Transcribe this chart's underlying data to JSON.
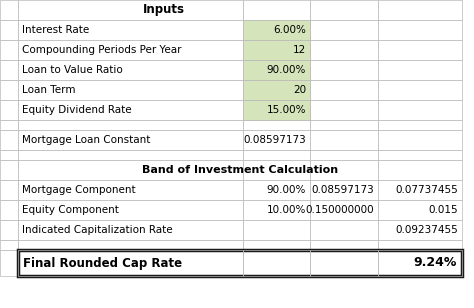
{
  "title_inputs": "Inputs",
  "title_band": "Band of Investment Calculation",
  "inputs": [
    {
      "label": "Interest Rate",
      "value": "6.00%",
      "highlighted": true
    },
    {
      "label": "Compounding Periods Per Year",
      "value": "12",
      "highlighted": true
    },
    {
      "label": "Loan to Value Ratio",
      "value": "90.00%",
      "highlighted": true
    },
    {
      "label": "Loan Term",
      "value": "20",
      "highlighted": true
    },
    {
      "label": "Equity Dividend Rate",
      "value": "15.00%",
      "highlighted": true
    }
  ],
  "mortgage_loan_constant": {
    "label": "Mortgage Loan Constant",
    "value": "0.08597173"
  },
  "band_rows": [
    {
      "label": "Mortgage Component",
      "col1": "90.00%",
      "col2": "0.08597173",
      "col3": "0.07737455"
    },
    {
      "label": "Equity Component",
      "col1": "10.00%",
      "col2": "0.150000000",
      "col3": "0.015"
    },
    {
      "label": "Indicated Capitalization Rate",
      "col1": "",
      "col2": "",
      "col3": "0.09237455"
    }
  ],
  "final_label": "Final Rounded Cap Rate",
  "final_value": "9.24%",
  "bg_color": "#ffffff",
  "green_bg": "#d6e4bc",
  "grid_color": "#b8b8b8",
  "final_border_color": "#1a1a1a",
  "text_color": "#000000",
  "fig_width": 4.74,
  "fig_height": 3.08,
  "dpi": 100
}
